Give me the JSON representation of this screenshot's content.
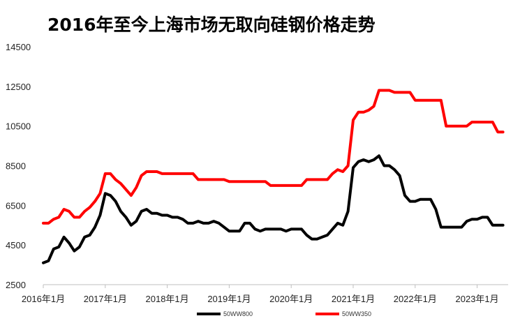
{
  "chart_data": {
    "type": "line",
    "title": "2016年至今上海市场无取向硅钢价格走势",
    "xlabel": "",
    "ylabel": "",
    "ylim": [
      2500,
      14500
    ],
    "yticks": [
      "2500",
      "4500",
      "6500",
      "8500",
      "10500",
      "12500",
      "14500"
    ],
    "xlim": [
      "2016-01",
      "2023-07"
    ],
    "xticks": [
      "2016年1月",
      "2017年1月",
      "2018年1月",
      "2019年1月",
      "2020年1月",
      "2021年1月",
      "2022年1月",
      "2023年1月"
    ],
    "grid": false,
    "legend_position": "bottom",
    "series": [
      {
        "name": "50WW800",
        "color": "#000000",
        "points": [
          [
            "2016-01",
            3600
          ],
          [
            "2016-02",
            3700
          ],
          [
            "2016-03",
            4300
          ],
          [
            "2016-04",
            4400
          ],
          [
            "2016-05",
            4900
          ],
          [
            "2016-06",
            4600
          ],
          [
            "2016-07",
            4200
          ],
          [
            "2016-08",
            4400
          ],
          [
            "2016-09",
            4900
          ],
          [
            "2016-10",
            5000
          ],
          [
            "2016-11",
            5400
          ],
          [
            "2016-12",
            6000
          ],
          [
            "2017-01",
            7100
          ],
          [
            "2017-02",
            7000
          ],
          [
            "2017-03",
            6700
          ],
          [
            "2017-04",
            6200
          ],
          [
            "2017-05",
            5900
          ],
          [
            "2017-06",
            5500
          ],
          [
            "2017-07",
            5700
          ],
          [
            "2017-08",
            6200
          ],
          [
            "2017-09",
            6300
          ],
          [
            "2017-10",
            6100
          ],
          [
            "2017-11",
            6100
          ],
          [
            "2017-12",
            6000
          ],
          [
            "2018-01",
            6000
          ],
          [
            "2018-02",
            5900
          ],
          [
            "2018-03",
            5900
          ],
          [
            "2018-04",
            5800
          ],
          [
            "2018-05",
            5600
          ],
          [
            "2018-06",
            5600
          ],
          [
            "2018-07",
            5700
          ],
          [
            "2018-08",
            5600
          ],
          [
            "2018-09",
            5600
          ],
          [
            "2018-10",
            5700
          ],
          [
            "2018-11",
            5600
          ],
          [
            "2018-12",
            5400
          ],
          [
            "2019-01",
            5200
          ],
          [
            "2019-02",
            5200
          ],
          [
            "2019-03",
            5200
          ],
          [
            "2019-04",
            5600
          ],
          [
            "2019-05",
            5600
          ],
          [
            "2019-06",
            5300
          ],
          [
            "2019-07",
            5200
          ],
          [
            "2019-08",
            5300
          ],
          [
            "2019-09",
            5300
          ],
          [
            "2019-10",
            5300
          ],
          [
            "2019-11",
            5300
          ],
          [
            "2019-12",
            5200
          ],
          [
            "2020-01",
            5300
          ],
          [
            "2020-02",
            5300
          ],
          [
            "2020-03",
            5300
          ],
          [
            "2020-04",
            5000
          ],
          [
            "2020-05",
            4800
          ],
          [
            "2020-06",
            4800
          ],
          [
            "2020-07",
            4900
          ],
          [
            "2020-08",
            5000
          ],
          [
            "2020-09",
            5300
          ],
          [
            "2020-10",
            5600
          ],
          [
            "2020-11",
            5500
          ],
          [
            "2020-12",
            6200
          ],
          [
            "2021-01",
            8400
          ],
          [
            "2021-02",
            8700
          ],
          [
            "2021-03",
            8800
          ],
          [
            "2021-04",
            8700
          ],
          [
            "2021-05",
            8800
          ],
          [
            "2021-06",
            9000
          ],
          [
            "2021-07",
            8500
          ],
          [
            "2021-08",
            8500
          ],
          [
            "2021-09",
            8300
          ],
          [
            "2021-10",
            8000
          ],
          [
            "2021-11",
            7000
          ],
          [
            "2021-12",
            6700
          ],
          [
            "2022-01",
            6700
          ],
          [
            "2022-02",
            6800
          ],
          [
            "2022-03",
            6800
          ],
          [
            "2022-04",
            6800
          ],
          [
            "2022-05",
            6300
          ],
          [
            "2022-06",
            5400
          ],
          [
            "2022-07",
            5400
          ],
          [
            "2022-08",
            5400
          ],
          [
            "2022-09",
            5400
          ],
          [
            "2022-10",
            5400
          ],
          [
            "2022-11",
            5700
          ],
          [
            "2022-12",
            5800
          ],
          [
            "2023-01",
            5800
          ],
          [
            "2023-02",
            5900
          ],
          [
            "2023-03",
            5900
          ],
          [
            "2023-04",
            5500
          ],
          [
            "2023-05",
            5500
          ],
          [
            "2023-06",
            5500
          ]
        ]
      },
      {
        "name": "50WW350",
        "color": "#ff0000",
        "points": [
          [
            "2016-01",
            5600
          ],
          [
            "2016-02",
            5600
          ],
          [
            "2016-03",
            5800
          ],
          [
            "2016-04",
            5900
          ],
          [
            "2016-05",
            6300
          ],
          [
            "2016-06",
            6200
          ],
          [
            "2016-07",
            5900
          ],
          [
            "2016-08",
            5900
          ],
          [
            "2016-09",
            6200
          ],
          [
            "2016-10",
            6400
          ],
          [
            "2016-11",
            6700
          ],
          [
            "2016-12",
            7100
          ],
          [
            "2017-01",
            8100
          ],
          [
            "2017-02",
            8100
          ],
          [
            "2017-03",
            7800
          ],
          [
            "2017-04",
            7600
          ],
          [
            "2017-05",
            7300
          ],
          [
            "2017-06",
            7000
          ],
          [
            "2017-07",
            7400
          ],
          [
            "2017-08",
            8000
          ],
          [
            "2017-09",
            8200
          ],
          [
            "2017-10",
            8200
          ],
          [
            "2017-11",
            8200
          ],
          [
            "2017-12",
            8100
          ],
          [
            "2018-01",
            8100
          ],
          [
            "2018-02",
            8100
          ],
          [
            "2018-03",
            8100
          ],
          [
            "2018-04",
            8100
          ],
          [
            "2018-05",
            8100
          ],
          [
            "2018-06",
            8100
          ],
          [
            "2018-07",
            7800
          ],
          [
            "2018-08",
            7800
          ],
          [
            "2018-09",
            7800
          ],
          [
            "2018-10",
            7800
          ],
          [
            "2018-11",
            7800
          ],
          [
            "2018-12",
            7800
          ],
          [
            "2019-01",
            7700
          ],
          [
            "2019-02",
            7700
          ],
          [
            "2019-03",
            7700
          ],
          [
            "2019-04",
            7700
          ],
          [
            "2019-05",
            7700
          ],
          [
            "2019-06",
            7700
          ],
          [
            "2019-07",
            7700
          ],
          [
            "2019-08",
            7700
          ],
          [
            "2019-09",
            7500
          ],
          [
            "2019-10",
            7500
          ],
          [
            "2019-11",
            7500
          ],
          [
            "2019-12",
            7500
          ],
          [
            "2020-01",
            7500
          ],
          [
            "2020-02",
            7500
          ],
          [
            "2020-03",
            7500
          ],
          [
            "2020-04",
            7800
          ],
          [
            "2020-05",
            7800
          ],
          [
            "2020-06",
            7800
          ],
          [
            "2020-07",
            7800
          ],
          [
            "2020-08",
            7800
          ],
          [
            "2020-09",
            8100
          ],
          [
            "2020-10",
            8300
          ],
          [
            "2020-11",
            8200
          ],
          [
            "2020-12",
            8500
          ],
          [
            "2021-01",
            10800
          ],
          [
            "2021-02",
            11200
          ],
          [
            "2021-03",
            11200
          ],
          [
            "2021-04",
            11300
          ],
          [
            "2021-05",
            11500
          ],
          [
            "2021-06",
            12300
          ],
          [
            "2021-07",
            12300
          ],
          [
            "2021-08",
            12300
          ],
          [
            "2021-09",
            12200
          ],
          [
            "2021-10",
            12200
          ],
          [
            "2021-11",
            12200
          ],
          [
            "2021-12",
            12200
          ],
          [
            "2022-01",
            11800
          ],
          [
            "2022-02",
            11800
          ],
          [
            "2022-03",
            11800
          ],
          [
            "2022-04",
            11800
          ],
          [
            "2022-05",
            11800
          ],
          [
            "2022-06",
            11800
          ],
          [
            "2022-07",
            10500
          ],
          [
            "2022-08",
            10500
          ],
          [
            "2022-09",
            10500
          ],
          [
            "2022-10",
            10500
          ],
          [
            "2022-11",
            10500
          ],
          [
            "2022-12",
            10700
          ],
          [
            "2023-01",
            10700
          ],
          [
            "2023-02",
            10700
          ],
          [
            "2023-03",
            10700
          ],
          [
            "2023-04",
            10700
          ],
          [
            "2023-05",
            10200
          ],
          [
            "2023-06",
            10200
          ]
        ]
      }
    ]
  }
}
